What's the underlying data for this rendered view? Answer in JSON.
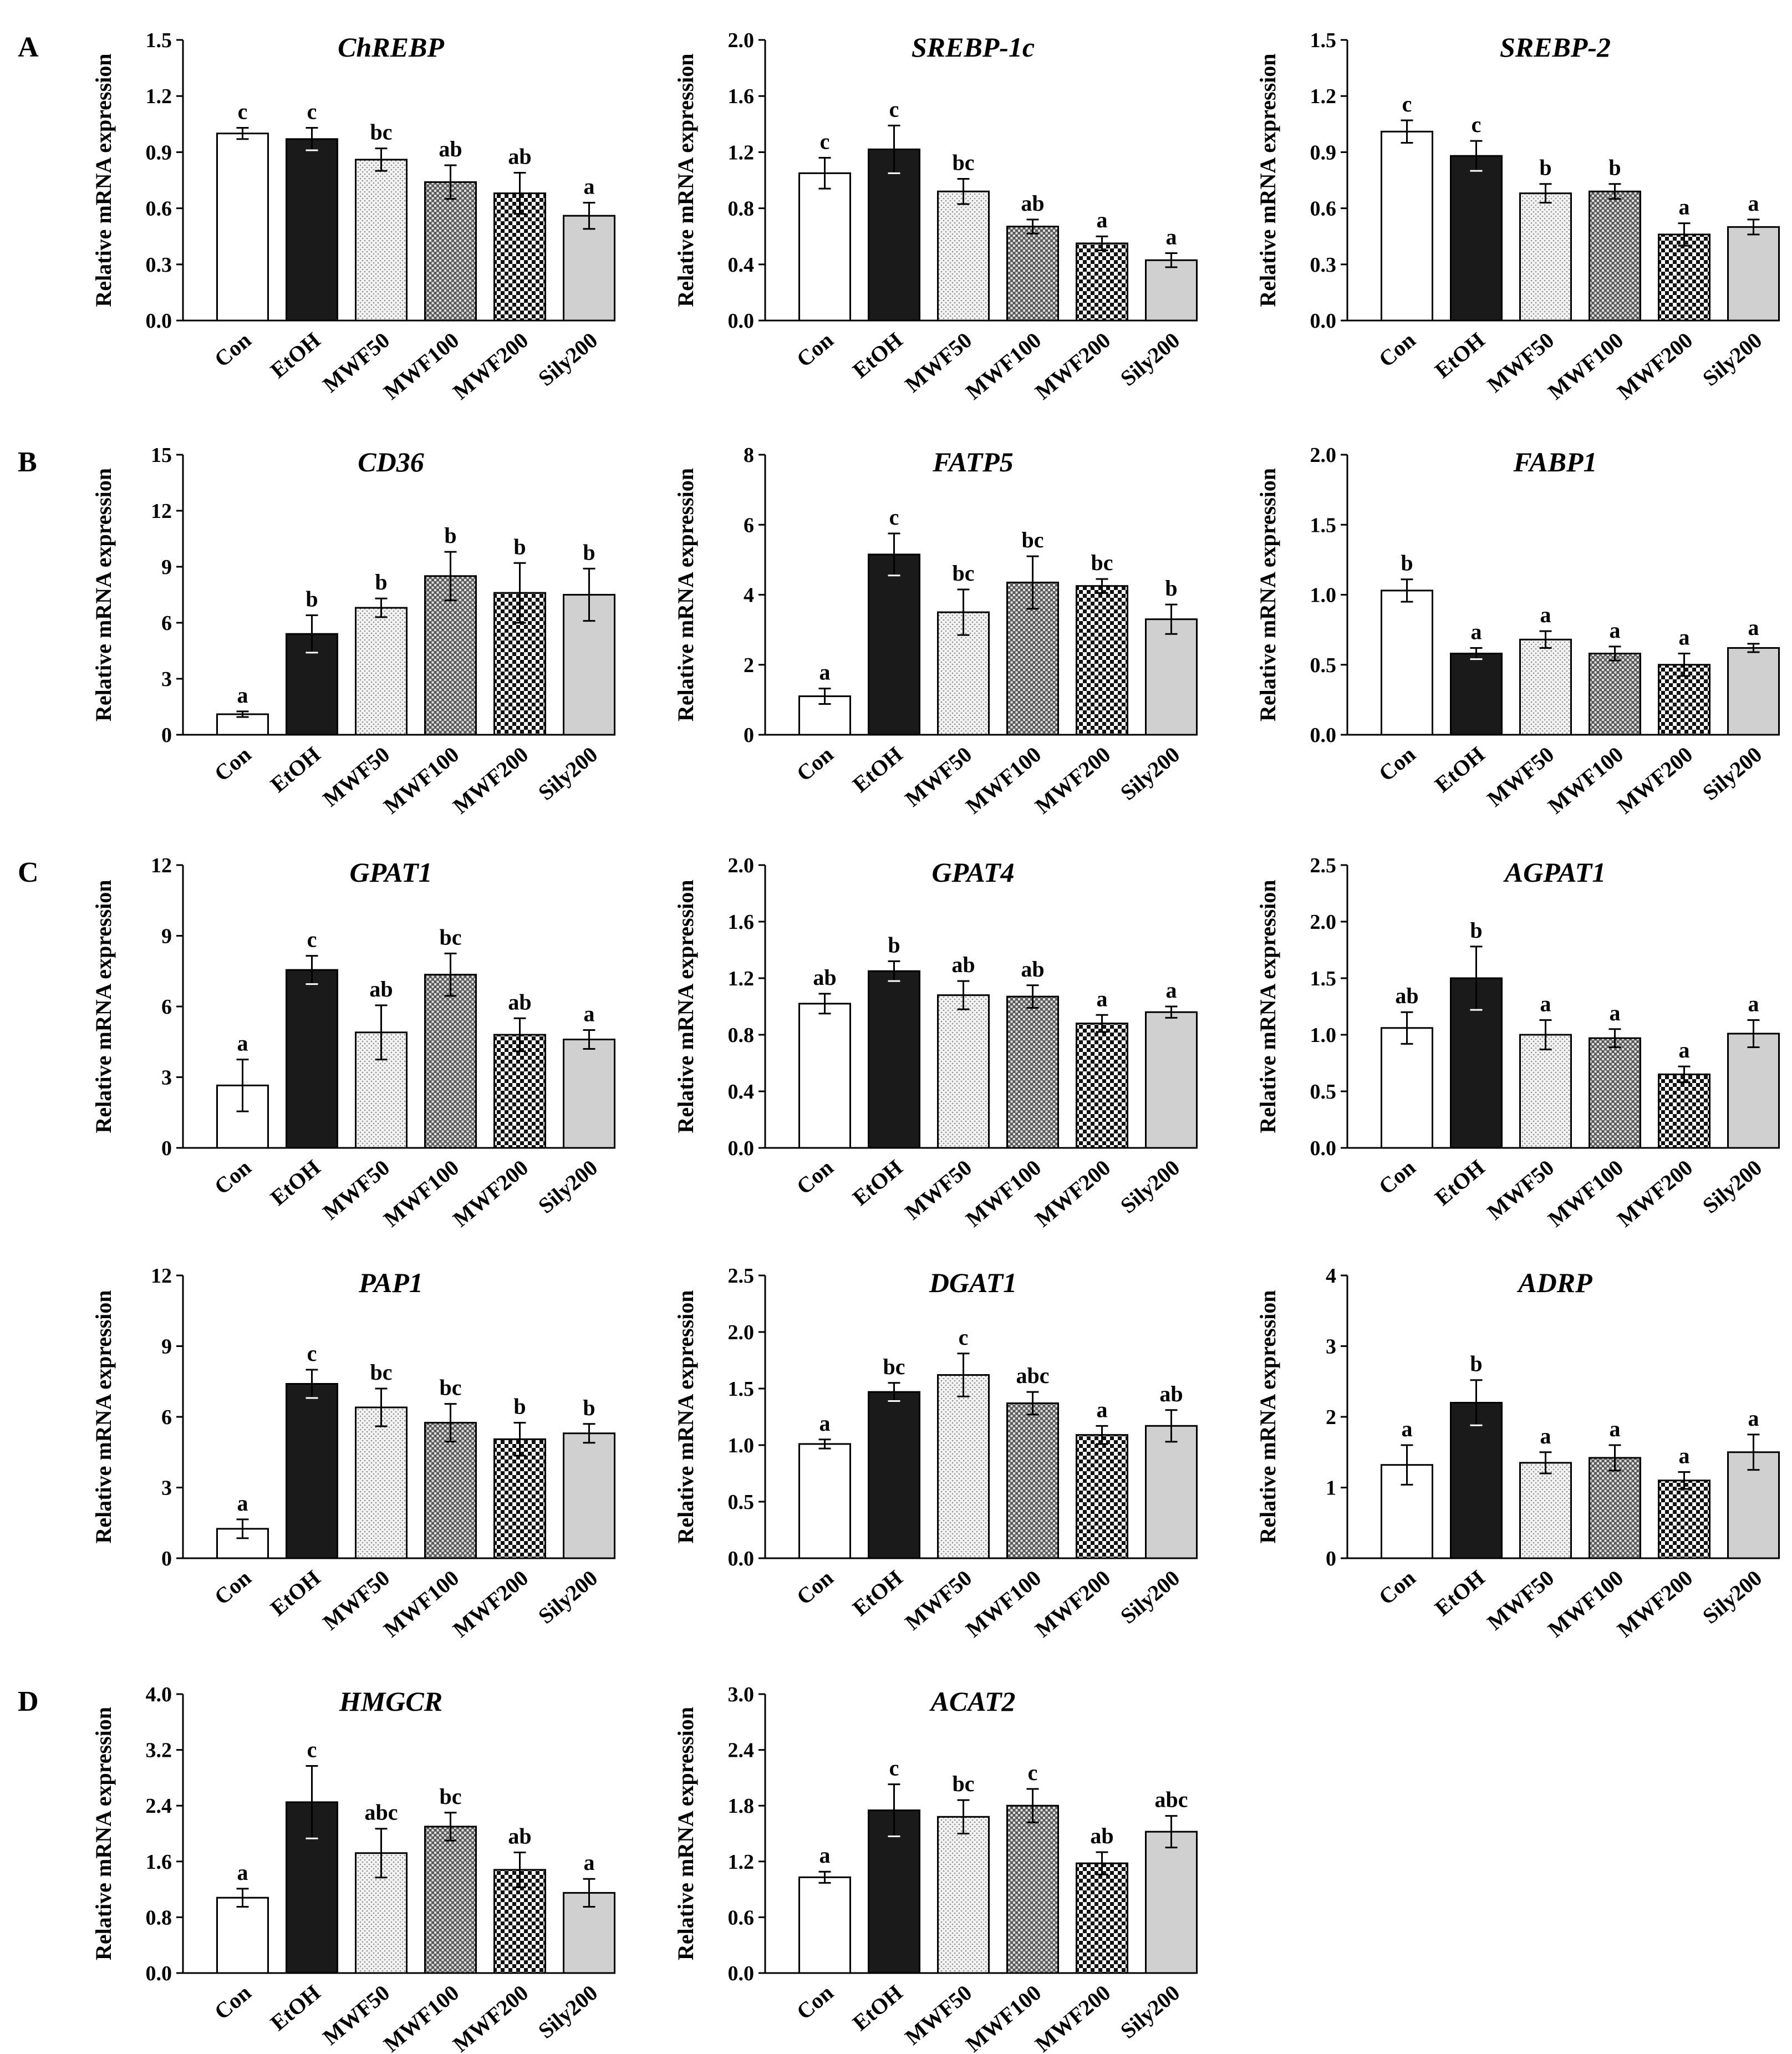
{
  "categories": [
    "Con",
    "EtOH",
    "MWF50",
    "MWF100",
    "MWF200",
    "Sily200"
  ],
  "ylabel": "Relative mRNA expression",
  "panels": [
    "A",
    "B",
    "C",
    "D"
  ],
  "chart_data": [
    {
      "type": "bar",
      "panel": "A",
      "title": "ChREBP",
      "ylabel": "Relative mRNA expression",
      "categories": [
        "Con",
        "EtOH",
        "MWF50",
        "MWF100",
        "MWF200",
        "Sily200"
      ],
      "yticks": [
        "0.0",
        "0.3",
        "0.6",
        "0.9",
        "1.2",
        "1.5"
      ],
      "ylim": [
        0,
        1.5
      ],
      "values": [
        1.0,
        0.97,
        0.86,
        0.74,
        0.68,
        0.56
      ],
      "errors": [
        0.03,
        0.06,
        0.06,
        0.09,
        0.11,
        0.07
      ],
      "labels": [
        "c",
        "c",
        "bc",
        "ab",
        "ab",
        "a"
      ]
    },
    {
      "type": "bar",
      "title": "SREBP-1c",
      "ylabel": "Relative mRNA expression",
      "categories": [
        "Con",
        "EtOH",
        "MWF50",
        "MWF100",
        "MWF200",
        "Sily200"
      ],
      "yticks": [
        "0.0",
        "0.4",
        "0.8",
        "1.2",
        "1.6",
        "2.0"
      ],
      "ylim": [
        0,
        2.0
      ],
      "values": [
        1.05,
        1.22,
        0.92,
        0.67,
        0.55,
        0.43
      ],
      "errors": [
        0.11,
        0.17,
        0.09,
        0.05,
        0.05,
        0.05
      ],
      "labels": [
        "c",
        "c",
        "bc",
        "ab",
        "a",
        "a"
      ]
    },
    {
      "type": "bar",
      "title": "SREBP-2",
      "ylabel": "Relative mRNA expression",
      "categories": [
        "Con",
        "EtOH",
        "MWF50",
        "MWF100",
        "MWF200",
        "Sily200"
      ],
      "yticks": [
        "0.0",
        "0.3",
        "0.6",
        "0.9",
        "1.2",
        "1.5"
      ],
      "ylim": [
        0,
        1.5
      ],
      "values": [
        1.01,
        0.88,
        0.68,
        0.69,
        0.46,
        0.5
      ],
      "errors": [
        0.06,
        0.08,
        0.05,
        0.04,
        0.06,
        0.04
      ],
      "labels": [
        "c",
        "c",
        "b",
        "b",
        "a",
        "a"
      ]
    },
    {
      "type": "bar",
      "panel": "B",
      "title": "CD36",
      "ylabel": "Relative mRNA expression",
      "categories": [
        "Con",
        "EtOH",
        "MWF50",
        "MWF100",
        "MWF200",
        "Sily200"
      ],
      "yticks": [
        "0",
        "3",
        "6",
        "9",
        "12",
        "15"
      ],
      "ylim": [
        0,
        15
      ],
      "values": [
        1.1,
        5.4,
        6.8,
        8.5,
        7.6,
        7.5
      ],
      "errors": [
        0.15,
        1.0,
        0.5,
        1.3,
        1.6,
        1.4
      ],
      "labels": [
        "a",
        "b",
        "b",
        "b",
        "b",
        "b"
      ]
    },
    {
      "type": "bar",
      "title": "FATP5",
      "ylabel": "Relative mRNA expression",
      "categories": [
        "Con",
        "EtOH",
        "MWF50",
        "MWF100",
        "MWF200",
        "Sily200"
      ],
      "yticks": [
        "0",
        "2",
        "4",
        "6",
        "8"
      ],
      "ylim": [
        0,
        8
      ],
      "values": [
        1.1,
        5.15,
        3.5,
        4.35,
        4.25,
        3.3
      ],
      "errors": [
        0.22,
        0.6,
        0.65,
        0.75,
        0.2,
        0.42
      ],
      "labels": [
        "a",
        "c",
        "bc",
        "bc",
        "bc",
        "b"
      ]
    },
    {
      "type": "bar",
      "title": "FABP1",
      "ylabel": "Relative mRNA expression",
      "categories": [
        "Con",
        "EtOH",
        "MWF50",
        "MWF100",
        "MWF200",
        "Sily200"
      ],
      "yticks": [
        "0.0",
        "0.5",
        "1.0",
        "1.5",
        "2.0"
      ],
      "ylim": [
        0,
        2.0
      ],
      "values": [
        1.03,
        0.58,
        0.68,
        0.58,
        0.5,
        0.62
      ],
      "errors": [
        0.08,
        0.04,
        0.06,
        0.05,
        0.08,
        0.03
      ],
      "labels": [
        "b",
        "a",
        "a",
        "a",
        "a",
        "a"
      ]
    },
    {
      "type": "bar",
      "panel": "C",
      "title": "GPAT1",
      "ylabel": "Relative mRNA expression",
      "categories": [
        "Con",
        "EtOH",
        "MWF50",
        "MWF100",
        "MWF200",
        "Sily200"
      ],
      "yticks": [
        "0",
        "3",
        "6",
        "9",
        "12"
      ],
      "ylim": [
        0,
        12
      ],
      "values": [
        2.65,
        7.55,
        4.9,
        7.35,
        4.8,
        4.6
      ],
      "errors": [
        1.1,
        0.6,
        1.15,
        0.9,
        0.7,
        0.4
      ],
      "labels": [
        "a",
        "c",
        "ab",
        "bc",
        "ab",
        "a"
      ]
    },
    {
      "type": "bar",
      "title": "GPAT4",
      "ylabel": "Relative mRNA expression",
      "categories": [
        "Con",
        "EtOH",
        "MWF50",
        "MWF100",
        "MWF200",
        "Sily200"
      ],
      "yticks": [
        "0.0",
        "0.4",
        "0.8",
        "1.2",
        "1.6",
        "2.0"
      ],
      "ylim": [
        0,
        2.0
      ],
      "values": [
        1.02,
        1.25,
        1.08,
        1.07,
        0.88,
        0.96
      ],
      "errors": [
        0.07,
        0.07,
        0.1,
        0.08,
        0.06,
        0.04
      ],
      "labels": [
        "ab",
        "b",
        "ab",
        "ab",
        "a",
        "a"
      ]
    },
    {
      "type": "bar",
      "title": "AGPAT1",
      "ylabel": "Relative mRNA expression",
      "categories": [
        "Con",
        "EtOH",
        "MWF50",
        "MWF100",
        "MWF200",
        "Sily200"
      ],
      "yticks": [
        "0.0",
        "0.5",
        "1.0",
        "1.5",
        "2.0",
        "2.5"
      ],
      "ylim": [
        0,
        2.5
      ],
      "values": [
        1.06,
        1.5,
        1.0,
        0.97,
        0.65,
        1.01
      ],
      "errors": [
        0.14,
        0.28,
        0.13,
        0.08,
        0.07,
        0.12
      ],
      "labels": [
        "ab",
        "b",
        "a",
        "a",
        "a",
        "a"
      ]
    },
    {
      "type": "bar",
      "title": "PAP1",
      "ylabel": "Relative mRNA expression",
      "categories": [
        "Con",
        "EtOH",
        "MWF50",
        "MWF100",
        "MWF200",
        "Sily200"
      ],
      "yticks": [
        "0",
        "3",
        "6",
        "9",
        "12"
      ],
      "ylim": [
        0,
        12
      ],
      "values": [
        1.25,
        7.4,
        6.4,
        5.75,
        5.05,
        5.3
      ],
      "errors": [
        0.4,
        0.6,
        0.8,
        0.8,
        0.7,
        0.4
      ],
      "labels": [
        "a",
        "c",
        "bc",
        "bc",
        "b",
        "b"
      ]
    },
    {
      "type": "bar",
      "title": "DGAT1",
      "ylabel": "Relative mRNA expression",
      "categories": [
        "Con",
        "EtOH",
        "MWF50",
        "MWF100",
        "MWF200",
        "Sily200"
      ],
      "yticks": [
        "0.0",
        "0.5",
        "1.0",
        "1.5",
        "2.0",
        "2.5"
      ],
      "ylim": [
        0,
        2.5
      ],
      "values": [
        1.01,
        1.47,
        1.62,
        1.37,
        1.09,
        1.17
      ],
      "errors": [
        0.04,
        0.08,
        0.19,
        0.1,
        0.08,
        0.14
      ],
      "labels": [
        "a",
        "bc",
        "c",
        "abc",
        "a",
        "ab"
      ]
    },
    {
      "type": "bar",
      "title": "ADRP",
      "ylabel": "Relative mRNA expression",
      "categories": [
        "Con",
        "EtOH",
        "MWF50",
        "MWF100",
        "MWF200",
        "Sily200"
      ],
      "yticks": [
        "0",
        "1",
        "2",
        "3",
        "4"
      ],
      "ylim": [
        0,
        4
      ],
      "values": [
        1.32,
        2.2,
        1.35,
        1.42,
        1.1,
        1.5
      ],
      "errors": [
        0.28,
        0.32,
        0.15,
        0.18,
        0.12,
        0.25
      ],
      "labels": [
        "a",
        "b",
        "a",
        "a",
        "a",
        "a"
      ]
    },
    {
      "type": "bar",
      "panel": "D",
      "title": "HMGCR",
      "ylabel": "Relative mRNA expression",
      "categories": [
        "Con",
        "EtOH",
        "MWF50",
        "MWF100",
        "MWF200",
        "Sily200"
      ],
      "yticks": [
        "0.0",
        "0.8",
        "1.6",
        "2.4",
        "3.2",
        "4.0"
      ],
      "ylim": [
        0,
        4.0
      ],
      "values": [
        1.08,
        2.45,
        1.72,
        2.1,
        1.48,
        1.15
      ],
      "errors": [
        0.13,
        0.52,
        0.35,
        0.2,
        0.25,
        0.2
      ],
      "labels": [
        "a",
        "c",
        "abc",
        "bc",
        "ab",
        "a"
      ]
    },
    {
      "type": "bar",
      "title": "ACAT2",
      "ylabel": "Relative mRNA expression",
      "categories": [
        "Con",
        "EtOH",
        "MWF50",
        "MWF100",
        "MWF200",
        "Sily200"
      ],
      "yticks": [
        "0.0",
        "0.6",
        "1.2",
        "1.8",
        "2.4",
        "3.0"
      ],
      "ylim": [
        0,
        3.0
      ],
      "values": [
        1.03,
        1.75,
        1.68,
        1.8,
        1.18,
        1.52
      ],
      "errors": [
        0.06,
        0.28,
        0.18,
        0.18,
        0.12,
        0.17
      ],
      "labels": [
        "a",
        "c",
        "bc",
        "c",
        "ab",
        "abc"
      ]
    }
  ]
}
